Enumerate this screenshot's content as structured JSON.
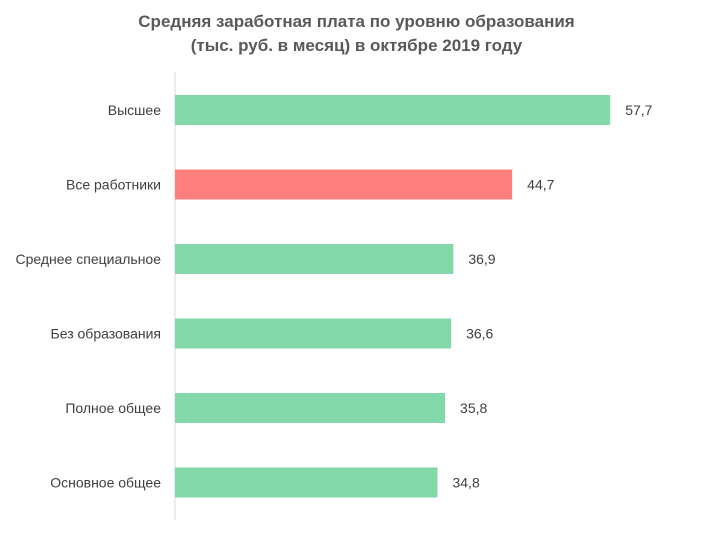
{
  "chart_data": {
    "type": "bar",
    "orientation": "horizontal",
    "title": "Средняя заработная плата по уровню образования\n(тыс. руб. в месяц) в октябре 2019 году",
    "categories": [
      "Высшее",
      "Все работники",
      "Среднее специальное",
      "Без образования",
      "Полное общее",
      "Основное общее"
    ],
    "values": [
      57.7,
      44.7,
      36.9,
      36.6,
      35.8,
      34.8
    ],
    "value_labels": [
      "57,7",
      "44,7",
      "36,9",
      "36,6",
      "35,8",
      "34,8"
    ],
    "colors": [
      "#82d8a8",
      "#ff7f7f",
      "#82d8a8",
      "#82d8a8",
      "#82d8a8",
      "#82d8a8"
    ],
    "xlim": [
      0,
      70
    ],
    "grid": false,
    "legend": "none"
  }
}
